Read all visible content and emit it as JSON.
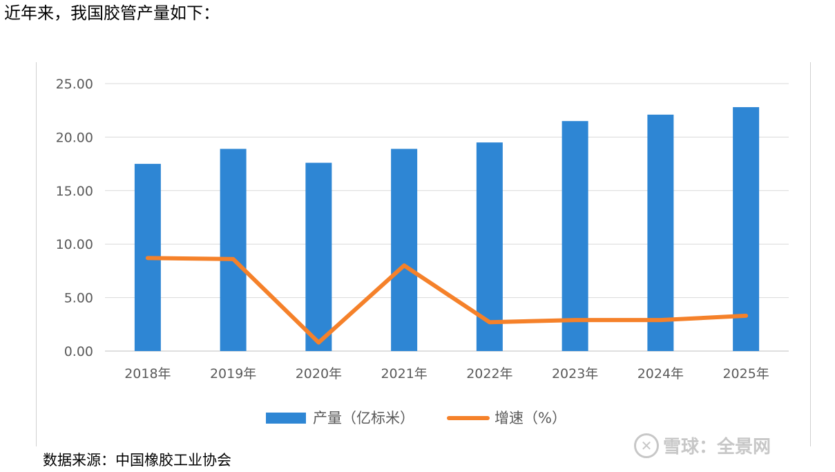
{
  "intro_text": "近年来，我国胶管产量如下：",
  "source_text": "数据来源：中国橡胶工业协会",
  "watermark": {
    "logo": "雪球",
    "text": "雪球：全景网",
    "icon": "snowball-logo-icon"
  },
  "colors": {
    "bar": "#2e86d4",
    "line": "#f5812a",
    "grid": "#d9d9d9",
    "tick": "#595959"
  },
  "chart_data": {
    "type": "bar",
    "categories": [
      "2018年",
      "2019年",
      "2020年",
      "2021年",
      "2022年",
      "2023年",
      "2024年",
      "2025年"
    ],
    "series": [
      {
        "name": "产量（亿标米）",
        "kind": "bar",
        "values": [
          17.5,
          18.9,
          17.6,
          18.9,
          19.5,
          21.5,
          22.1,
          22.8
        ]
      },
      {
        "name": "增速（%）",
        "kind": "line",
        "values": [
          8.7,
          8.6,
          0.8,
          8.0,
          2.7,
          2.9,
          2.9,
          3.3
        ]
      }
    ],
    "y_tick_labels": [
      "0.00",
      "5.00",
      "10.00",
      "15.00",
      "20.00",
      "25.00"
    ],
    "ylim": [
      0,
      25
    ],
    "grid": true,
    "legend_position": "bottom"
  }
}
